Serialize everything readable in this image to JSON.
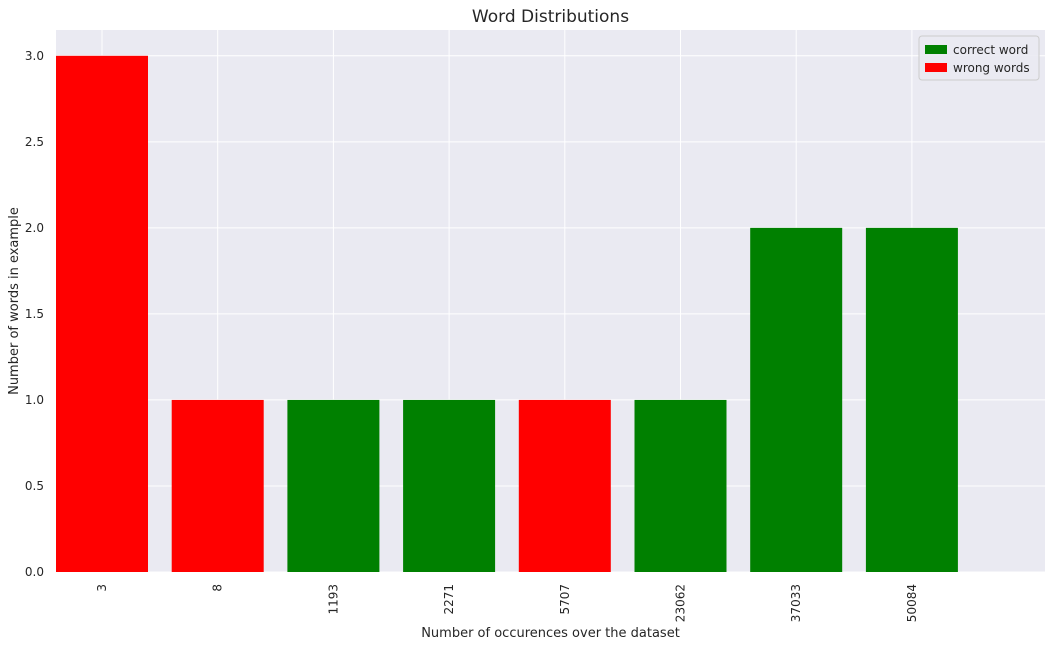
{
  "chart_data": {
    "type": "bar",
    "title": "Word Distributions",
    "xlabel": "Number of occurences over the dataset",
    "ylabel": "Number of words in example",
    "categories": [
      "3",
      "8",
      "1193",
      "2271",
      "5707",
      "23062",
      "37033",
      "50084"
    ],
    "values": [
      3,
      1,
      1,
      1,
      1,
      1,
      2,
      2
    ],
    "bar_series": [
      "wrong words",
      "wrong words",
      "correct word",
      "correct word",
      "wrong words",
      "correct word",
      "correct word",
      "correct word"
    ],
    "ylim": [
      0,
      3.15
    ],
    "yticks": [
      "0.0",
      "0.5",
      "1.0",
      "1.5",
      "2.0",
      "2.5",
      "3.0"
    ],
    "ytick_values": [
      0,
      0.5,
      1,
      1.5,
      2,
      2.5,
      3
    ],
    "grid": true,
    "legend": {
      "placement": "top-right",
      "entries": [
        {
          "name": "correct word",
          "color": "#008000"
        },
        {
          "name": "wrong words",
          "color": "#ff0000"
        }
      ]
    },
    "colors": {
      "background": "#eaeaf2",
      "grid": "#ffffff"
    }
  }
}
